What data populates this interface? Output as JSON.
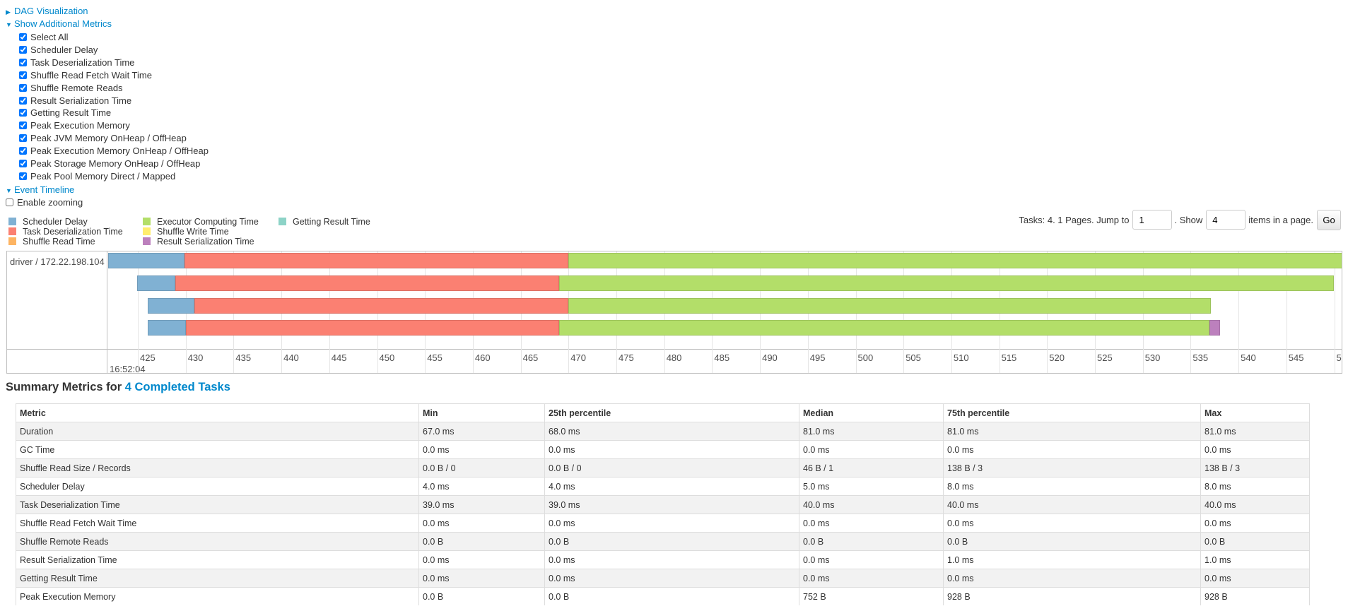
{
  "sections": {
    "dag": "DAG Visualization",
    "additional_metrics": "Show Additional Metrics",
    "event_timeline": "Event Timeline"
  },
  "metric_checkboxes": [
    {
      "label": "Select All",
      "checked": true
    },
    {
      "label": "Scheduler Delay",
      "checked": true
    },
    {
      "label": "Task Deserialization Time",
      "checked": true
    },
    {
      "label": "Shuffle Read Fetch Wait Time",
      "checked": true
    },
    {
      "label": "Shuffle Remote Reads",
      "checked": true
    },
    {
      "label": "Result Serialization Time",
      "checked": true
    },
    {
      "label": "Getting Result Time",
      "checked": true
    },
    {
      "label": "Peak Execution Memory",
      "checked": true
    },
    {
      "label": "Peak JVM Memory OnHeap / OffHeap",
      "checked": true
    },
    {
      "label": "Peak Execution Memory OnHeap / OffHeap",
      "checked": true
    },
    {
      "label": "Peak Storage Memory OnHeap / OffHeap",
      "checked": true
    },
    {
      "label": "Peak Pool Memory Direct / Mapped",
      "checked": true
    }
  ],
  "enable_zooming": {
    "label": "Enable zooming",
    "checked": false
  },
  "legend": [
    {
      "label": "Scheduler Delay",
      "color": "#80B1D3"
    },
    {
      "label": "Task Deserialization Time",
      "color": "#FB8072"
    },
    {
      "label": "Shuffle Read Time",
      "color": "#FDB462"
    },
    {
      "label": "Executor Computing Time",
      "color": "#B3DE69"
    },
    {
      "label": "Shuffle Write Time",
      "color": "#FFED6F"
    },
    {
      "label": "Result Serialization Time",
      "color": "#BC80BD"
    },
    {
      "label": "Getting Result Time",
      "color": "#8DD3C7"
    }
  ],
  "pagination": {
    "prefix": "Tasks: 4. 1 Pages. Jump to",
    "page_value": "1",
    "show_label": ". Show",
    "page_size_value": "4",
    "suffix": "items in a page.",
    "go_label": "Go"
  },
  "timeline": {
    "executor": "driver / 172.22.198.104",
    "date_label": "16:52:04",
    "axis_ticks": [
      "425",
      "430",
      "435",
      "440",
      "445",
      "450",
      "455",
      "460",
      "465",
      "470",
      "475",
      "480",
      "485",
      "490",
      "495",
      "500",
      "505",
      "510",
      "515",
      "520",
      "525",
      "530",
      "535",
      "540",
      "545",
      "5"
    ],
    "tasks": [
      {
        "segments": [
          {
            "type": 0,
            "from": 421.9,
            "to": 429.9
          },
          {
            "type": 1,
            "from": 429.9,
            "to": 470.0
          },
          {
            "type": 3,
            "from": 470.0,
            "to": 552
          }
        ]
      },
      {
        "segments": [
          {
            "type": 0,
            "from": 424.9,
            "to": 428.9
          },
          {
            "type": 1,
            "from": 428.9,
            "to": 469.0
          },
          {
            "type": 3,
            "from": 469.0,
            "to": 550.0
          }
        ]
      },
      {
        "segments": [
          {
            "type": 0,
            "from": 426.0,
            "to": 430.9
          },
          {
            "type": 1,
            "from": 430.9,
            "to": 470.0
          },
          {
            "type": 3,
            "from": 470.0,
            "to": 537.1
          }
        ]
      },
      {
        "segments": [
          {
            "type": 0,
            "from": 426.0,
            "to": 430.0
          },
          {
            "type": 1,
            "from": 430.0,
            "to": 469.0
          },
          {
            "type": 3,
            "from": 469.0,
            "to": 537.0
          },
          {
            "type": 5,
            "from": 537.0,
            "to": 538.1
          }
        ]
      }
    ]
  },
  "summary": {
    "title_prefix": "Summary Metrics for ",
    "title_link": "4 Completed Tasks",
    "columns": [
      "Metric",
      "Min",
      "25th percentile",
      "Median",
      "75th percentile",
      "Max"
    ],
    "rows": [
      [
        "Duration",
        "67.0 ms",
        "68.0 ms",
        "81.0 ms",
        "81.0 ms",
        "81.0 ms"
      ],
      [
        "GC Time",
        "0.0 ms",
        "0.0 ms",
        "0.0 ms",
        "0.0 ms",
        "0.0 ms"
      ],
      [
        "Shuffle Read Size / Records",
        "0.0 B / 0",
        "0.0 B / 0",
        "46 B / 1",
        "138 B / 3",
        "138 B / 3"
      ],
      [
        "Scheduler Delay",
        "4.0 ms",
        "4.0 ms",
        "5.0 ms",
        "8.0 ms",
        "8.0 ms"
      ],
      [
        "Task Deserialization Time",
        "39.0 ms",
        "39.0 ms",
        "40.0 ms",
        "40.0 ms",
        "40.0 ms"
      ],
      [
        "Shuffle Read Fetch Wait Time",
        "0.0 ms",
        "0.0 ms",
        "0.0 ms",
        "0.0 ms",
        "0.0 ms"
      ],
      [
        "Shuffle Remote Reads",
        "0.0 B",
        "0.0 B",
        "0.0 B",
        "0.0 B",
        "0.0 B"
      ],
      [
        "Result Serialization Time",
        "0.0 ms",
        "0.0 ms",
        "0.0 ms",
        "1.0 ms",
        "1.0 ms"
      ],
      [
        "Getting Result Time",
        "0.0 ms",
        "0.0 ms",
        "0.0 ms",
        "0.0 ms",
        "0.0 ms"
      ],
      [
        "Peak Execution Memory",
        "0.0 B",
        "0.0 B",
        "752 B",
        "928 B",
        "928 B"
      ]
    ]
  },
  "colors": {
    "link": "#0088cc"
  }
}
